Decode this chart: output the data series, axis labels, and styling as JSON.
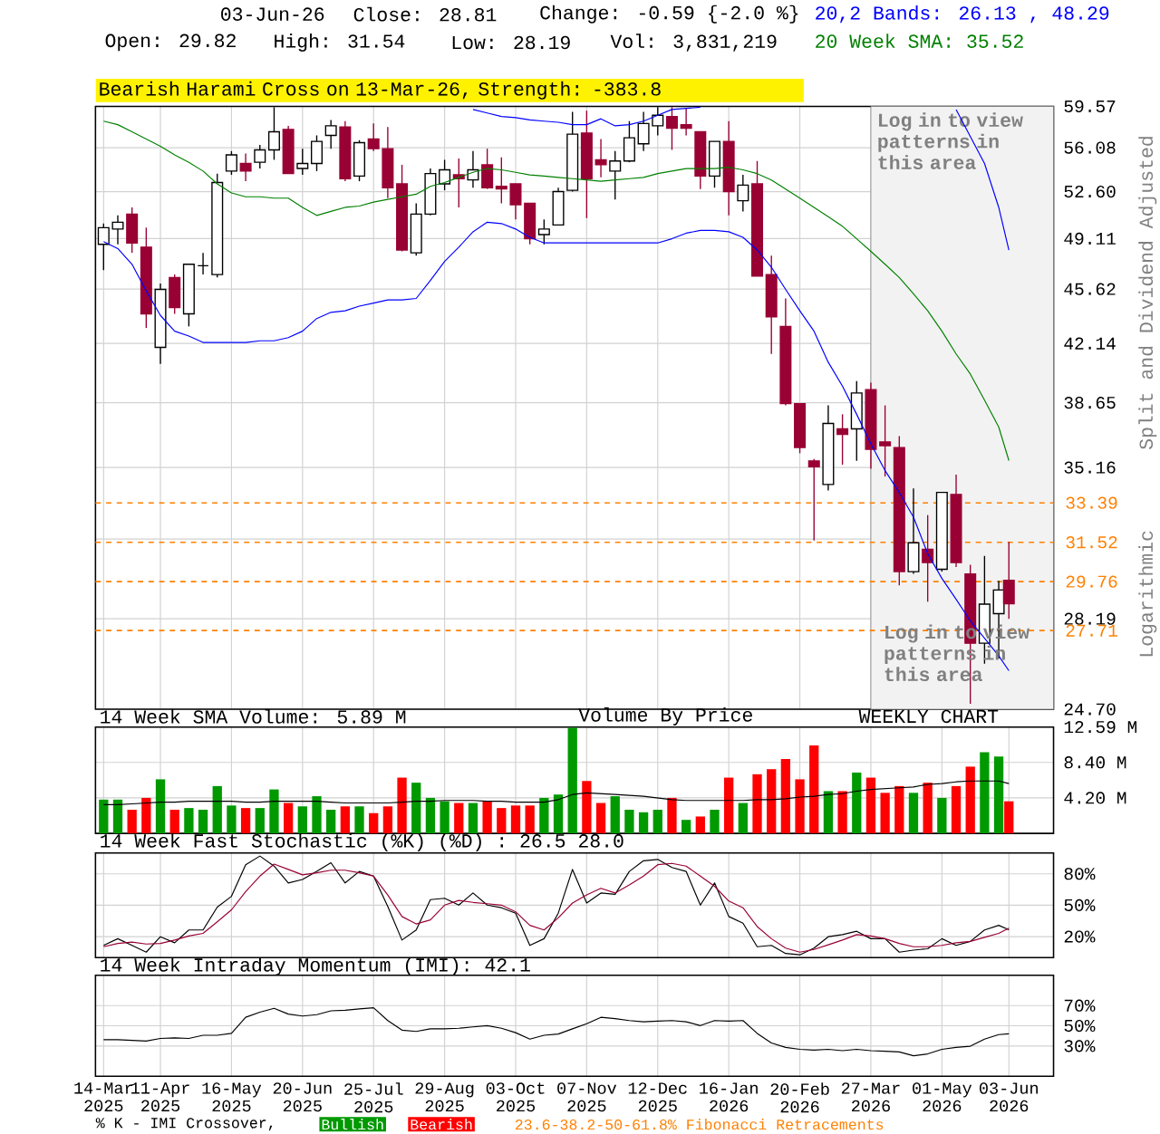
{
  "chart_data": [
    {
      "type": "candlestick",
      "grid": true,
      "log": true,
      "tick_labels": "y",
      "colors": [
        "#ffffff",
        "#ffffff",
        "#990033",
        "#990033",
        "#ffffff",
        "#990033",
        "#ffffff",
        "#000000",
        "#ffffff",
        "#ffffff",
        "#990033",
        "#ffffff",
        "#ffffff",
        "#990033",
        "#ffffff",
        "#ffffff",
        "#ffffff",
        "#990033",
        "#ffffff",
        "#990033",
        "#990033",
        "#990033",
        "#ffffff",
        "#ffffff",
        "#ffffff",
        "#990033",
        "#ffffff",
        "#990033",
        "#990033",
        "#990033",
        "#990033",
        "#ffffff",
        "#ffffff",
        "#ffffff",
        "#990033",
        "#990033",
        "#ffffff",
        "#ffffff",
        "#ffffff",
        "#ffffff",
        "#990033",
        "#990033",
        "#990033",
        "#ffffff",
        "#990033",
        "#ffffff",
        "#990033",
        "#990033",
        "#990033",
        "#990033",
        "#990033",
        "#ffffff",
        "#990033",
        "#ffffff",
        "#990033",
        "#990033",
        "#990033",
        "#ffffff",
        "#990033",
        "#ffffff",
        "#990033",
        "#990033",
        "#ffffff",
        "#ffffff",
        "#990033"
      ],
      "x": [
        "2025-03-14",
        "2025-03-21",
        "2025-03-28",
        "2025-04-04",
        "2025-04-11",
        "2025-04-18",
        "2025-04-25",
        "2025-05-02",
        "2025-05-09",
        "2025-05-16",
        "2025-05-23",
        "2025-05-30",
        "2025-06-06",
        "2025-06-13",
        "2025-06-20",
        "2025-06-27",
        "2025-07-04",
        "2025-07-11",
        "2025-07-18",
        "2025-07-25",
        "2025-08-01",
        "2025-08-08",
        "2025-08-15",
        "2025-08-22",
        "2025-08-29",
        "2025-09-05",
        "2025-09-12",
        "2025-09-19",
        "2025-09-26",
        "2025-10-03",
        "2025-10-10",
        "2025-10-17",
        "2025-10-24",
        "2025-10-31",
        "2025-11-07",
        "2025-11-14",
        "2025-11-21",
        "2025-11-28",
        "2025-12-05",
        "2025-12-12",
        "2025-12-19",
        "2025-12-26",
        "2026-01-02",
        "2026-01-09",
        "2026-01-16",
        "2026-01-23",
        "2026-01-30",
        "2026-02-06",
        "2026-02-13",
        "2026-02-20",
        "2026-02-27",
        "2026-03-06",
        "2026-03-13",
        "2026-03-20",
        "2026-03-27",
        "2026-04-03",
        "2026-04-10",
        "2026-04-17",
        "2026-04-24",
        "2026-05-01",
        "2026-05-08",
        "2026-05-15",
        "2026-05-22",
        "2026-05-29",
        "2026-06-03"
      ],
      "ohlc": [
        [
          48.7,
          50.2,
          46.9,
          49.9
        ],
        [
          49.8,
          50.8,
          48.7,
          50.3
        ],
        [
          50.9,
          51.4,
          48.1,
          48.8
        ],
        [
          48.5,
          49.9,
          43.1,
          44.0
        ],
        [
          41.9,
          46.0,
          40.9,
          45.6
        ],
        [
          46.4,
          46.6,
          44.0,
          44.4
        ],
        [
          44.0,
          47.3,
          43.2,
          47.3
        ],
        [
          47.2,
          48.1,
          46.6,
          47.2
        ],
        [
          46.6,
          54.0,
          46.4,
          53.3
        ],
        [
          54.2,
          55.8,
          53.9,
          55.5
        ],
        [
          54.8,
          55.6,
          53.4,
          54.2
        ],
        [
          54.9,
          56.3,
          54.4,
          55.9
        ],
        [
          55.9,
          59.5,
          55.1,
          57.4
        ],
        [
          57.6,
          57.9,
          54.0,
          54.0
        ],
        [
          54.4,
          56.0,
          53.9,
          54.8
        ],
        [
          54.8,
          57.1,
          54.2,
          56.6
        ],
        [
          57.1,
          58.4,
          56.0,
          57.9
        ],
        [
          57.8,
          58.3,
          53.4,
          53.6
        ],
        [
          53.8,
          56.7,
          53.4,
          56.5
        ],
        [
          56.8,
          58.1,
          55.8,
          56.0
        ],
        [
          56.0,
          57.8,
          52.1,
          52.9
        ],
        [
          53.2,
          54.7,
          48.2,
          48.3
        ],
        [
          48.1,
          51.7,
          47.9,
          50.9
        ],
        [
          50.9,
          54.4,
          50.8,
          54.0
        ],
        [
          53.2,
          55.1,
          52.7,
          54.3
        ],
        [
          53.9,
          55.2,
          51.4,
          53.6
        ],
        [
          53.5,
          55.8,
          52.9,
          54.3
        ],
        [
          54.7,
          56.0,
          52.8,
          52.9
        ],
        [
          53.0,
          55.3,
          51.7,
          52.8
        ],
        [
          53.2,
          53.2,
          50.5,
          51.6
        ],
        [
          51.7,
          51.7,
          48.7,
          49.1
        ],
        [
          49.4,
          50.5,
          48.7,
          49.8
        ],
        [
          50.1,
          52.9,
          50.1,
          52.6
        ],
        [
          52.7,
          59.1,
          52.6,
          57.2
        ],
        [
          57.3,
          59.2,
          50.6,
          53.6
        ],
        [
          55.1,
          56.8,
          53.7,
          54.7
        ],
        [
          54.2,
          55.8,
          52.0,
          55.0
        ],
        [
          55.0,
          58.3,
          54.9,
          56.9
        ],
        [
          56.4,
          59.1,
          55.8,
          58.1
        ],
        [
          57.9,
          59.5,
          57.1,
          58.8
        ],
        [
          58.7,
          59.5,
          55.9,
          57.7
        ],
        [
          58.0,
          59.4,
          57.1,
          57.7
        ],
        [
          57.4,
          57.4,
          52.8,
          53.8
        ],
        [
          53.8,
          56.6,
          52.9,
          56.6
        ],
        [
          56.6,
          58.3,
          50.8,
          52.6
        ],
        [
          51.9,
          53.9,
          51.1,
          53.1
        ],
        [
          53.2,
          55.0,
          46.5,
          46.5
        ],
        [
          46.6,
          47.9,
          41.5,
          43.8
        ],
        [
          43.2,
          45.0,
          38.5,
          38.6
        ],
        [
          38.6,
          38.6,
          35.9,
          36.2
        ],
        [
          35.5,
          35.6,
          31.6,
          35.2
        ],
        [
          34.3,
          38.5,
          34.0,
          37.5
        ],
        [
          37.2,
          38.0,
          35.3,
          36.9
        ],
        [
          37.2,
          39.9,
          35.5,
          39.2
        ],
        [
          39.4,
          39.8,
          35.1,
          36.1
        ],
        [
          36.5,
          38.5,
          34.7,
          36.3
        ],
        [
          36.2,
          36.8,
          29.6,
          30.2
        ],
        [
          30.2,
          34.1,
          30.1,
          31.5
        ],
        [
          31.2,
          32.8,
          28.9,
          30.6
        ],
        [
          30.3,
          33.9,
          30.2,
          33.9
        ],
        [
          33.8,
          34.8,
          30.4,
          30.6
        ],
        [
          30.1,
          30.5,
          24.9,
          27.2
        ],
        [
          27.2,
          30.9,
          26.4,
          28.8
        ],
        [
          28.4,
          29.8,
          26.6,
          29.4
        ],
        [
          29.82,
          31.54,
          28.19,
          28.81
        ]
      ],
      "series": [
        {
          "type": "line",
          "name": "20,2 Bands: 26.13 , 48.29",
          "color": "#0000ff",
          "values": [
            null,
            null,
            null,
            null,
            null,
            null,
            null,
            null,
            null,
            null,
            null,
            null,
            null,
            null,
            null,
            null,
            null,
            null,
            null,
            null,
            null,
            null,
            null,
            null,
            null,
            null,
            59.3,
            59.0,
            58.7,
            58.6,
            58.4,
            58.3,
            58.2,
            58.0,
            58.0,
            58.5,
            57.9,
            58.0,
            58.3,
            58.8,
            59.3,
            59.4,
            59.5,
            null,
            null,
            null,
            null,
            null,
            null,
            null,
            null,
            null,
            null,
            null,
            null,
            null,
            null,
            null,
            null,
            null,
            59.3,
            57.0,
            54.8,
            51.4,
            48.29
          ]
        },
        {
          "type": "line",
          "color": "#0000ff",
          "values": [
            48.9,
            48.4,
            47.3,
            45.5,
            43.9,
            42.9,
            42.6,
            42.2,
            42.2,
            42.2,
            42.2,
            42.3,
            42.3,
            42.5,
            42.9,
            43.7,
            44.1,
            44.2,
            44.5,
            44.7,
            44.9,
            44.9,
            45.0,
            46.2,
            47.5,
            48.5,
            49.6,
            50.3,
            50.2,
            49.8,
            49.2,
            48.8,
            48.8,
            48.8,
            48.8,
            48.8,
            48.8,
            48.8,
            48.8,
            48.8,
            49.1,
            49.5,
            49.7,
            49.7,
            49.6,
            49.2,
            48.3,
            47.1,
            45.6,
            44.2,
            42.9,
            41.0,
            39.6,
            38.0,
            36.4,
            35.0,
            33.9,
            32.7,
            31.0,
            29.9,
            29.0,
            28.1,
            27.4,
            26.7,
            26.13
          ]
        },
        {
          "type": "line",
          "name": "20 Week SMA: 35.52",
          "color": "#008000",
          "values": [
            58.3,
            58.0,
            57.4,
            56.8,
            56.2,
            55.5,
            54.9,
            54.2,
            53.2,
            52.5,
            52.2,
            52.2,
            52.1,
            52.1,
            51.4,
            50.8,
            51.1,
            51.4,
            51.5,
            51.8,
            52.0,
            52.2,
            52.4,
            53.0,
            53.3,
            53.7,
            54.1,
            54.4,
            54.3,
            54.1,
            53.9,
            53.8,
            53.7,
            53.6,
            53.5,
            53.4,
            53.5,
            53.6,
            53.7,
            54.0,
            54.2,
            54.4,
            54.4,
            54.4,
            54.5,
            54.3,
            54.0,
            53.5,
            52.8,
            52.1,
            51.4,
            50.7,
            50.0,
            49.1,
            48.2,
            47.3,
            46.4,
            45.3,
            44.2,
            42.9,
            41.5,
            40.3,
            38.8,
            37.3,
            35.52
          ]
        }
      ],
      "xlim": [
        "2025-03-10",
        "2026-06-25"
      ],
      "xticks": [
        {
          "value": "2025-03-14",
          "label": null
        },
        {
          "value": "2025-04-11",
          "label": null
        },
        {
          "value": "2025-05-16",
          "label": null
        },
        {
          "value": "2025-06-20",
          "label": null
        },
        {
          "value": "2025-07-25",
          "label": null
        },
        {
          "value": "2025-08-29",
          "label": null
        },
        {
          "value": "2025-10-03",
          "label": null
        },
        {
          "value": "2025-11-07",
          "label": null
        },
        {
          "value": "2025-12-12",
          "label": null
        },
        {
          "value": "2026-01-16",
          "label": null
        },
        {
          "value": "2026-02-20",
          "label": null
        },
        {
          "value": "2026-03-27",
          "label": null
        },
        {
          "value": "2026-05-01",
          "label": null
        },
        {
          "value": "2026-06-03",
          "label": null
        }
      ],
      "ylim": [
        24.7,
        59.57
      ],
      "yticks": [
        59.57,
        56.08,
        {
          "value": 52.6,
          "label": "52.60"
        },
        49.11,
        45.62,
        42.14,
        38.65,
        35.16,
        {
          "value": 31.67,
          "label": null
        },
        28.19,
        {
          "value": 24.7,
          "label": "24.70"
        }
      ],
      "ref_lines": [
        {
          "axis": "y",
          "value": 33.39,
          "label": "33.39",
          "color": "#ff8000",
          "line_style": "dashed"
        },
        {
          "axis": "y",
          "value": 31.52,
          "label": "31.52",
          "color": "#ff8000",
          "line_style": "dashed"
        },
        {
          "axis": "y",
          "value": 29.76,
          "label": "29.76",
          "color": "#ff8000",
          "line_style": "dashed"
        },
        {
          "axis": "y",
          "value": 27.71,
          "label": "27.71",
          "color": "#ff8000",
          "line_style": "dashed"
        }
      ],
      "bands": [
        {
          "axis": "x",
          "from": "2026-03-27",
          "to": "2026-06-25",
          "label": "Log in to view patterns in this area",
          "color": "#f2f2f2"
        }
      ],
      "annotations": [
        "03-Jun-26",
        "Close: 28.81",
        "Change: -0.59 {-2.0 %}",
        "Open: 29.82",
        "High: 31.54",
        "Low: 28.19",
        "Vol: 3,831,219",
        "Bearish Harami Cross on 13-Mar-26, Strength: -383.8",
        "Split and Dividend Adjusted",
        "Logarithmic",
        "Log in to view patterns in this area"
      ]
    },
    {
      "type": "bar",
      "grid": true,
      "tick_labels": "y",
      "x": [
        "2025-03-14",
        "2025-03-21",
        "2025-03-28",
        "2025-04-04",
        "2025-04-11",
        "2025-04-18",
        "2025-04-25",
        "2025-05-02",
        "2025-05-09",
        "2025-05-16",
        "2025-05-23",
        "2025-05-30",
        "2025-06-06",
        "2025-06-13",
        "2025-06-20",
        "2025-06-27",
        "2025-07-04",
        "2025-07-11",
        "2025-07-18",
        "2025-07-25",
        "2025-08-01",
        "2025-08-08",
        "2025-08-15",
        "2025-08-22",
        "2025-08-29",
        "2025-09-05",
        "2025-09-12",
        "2025-09-19",
        "2025-09-26",
        "2025-10-03",
        "2025-10-10",
        "2025-10-17",
        "2025-10-24",
        "2025-10-31",
        "2025-11-07",
        "2025-11-14",
        "2025-11-21",
        "2025-11-28",
        "2025-12-05",
        "2025-12-12",
        "2025-12-19",
        "2025-12-26",
        "2026-01-02",
        "2026-01-09",
        "2026-01-16",
        "2026-01-23",
        "2026-01-30",
        "2026-02-06",
        "2026-02-13",
        "2026-02-20",
        "2026-02-27",
        "2026-03-06",
        "2026-03-13",
        "2026-03-20",
        "2026-03-27",
        "2026-04-03",
        "2026-04-10",
        "2026-04-17",
        "2026-04-24",
        "2026-05-01",
        "2026-05-08",
        "2026-05-15",
        "2026-05-22",
        "2026-05-29",
        "2026-06-03"
      ],
      "series": [
        {
          "colors": [
            "#009900",
            "#009900",
            "#ff0000",
            "#ff0000",
            "#009900",
            "#ff0000",
            "#009900",
            "#009900",
            "#009900",
            "#009900",
            "#ff0000",
            "#009900",
            "#009900",
            "#ff0000",
            "#009900",
            "#009900",
            "#009900",
            "#ff0000",
            "#009900",
            "#ff0000",
            "#ff0000",
            "#ff0000",
            "#009900",
            "#009900",
            "#009900",
            "#ff0000",
            "#009900",
            "#ff0000",
            "#ff0000",
            "#ff0000",
            "#ff0000",
            "#009900",
            "#009900",
            "#009900",
            "#ff0000",
            "#ff0000",
            "#009900",
            "#009900",
            "#009900",
            "#009900",
            "#ff0000",
            "#009900",
            "#ff0000",
            "#009900",
            "#ff0000",
            "#009900",
            "#ff0000",
            "#ff0000",
            "#ff0000",
            "#ff0000",
            "#ff0000",
            "#009900",
            "#ff0000",
            "#009900",
            "#ff0000",
            "#ff0000",
            "#ff0000",
            "#009900",
            "#ff0000",
            "#009900",
            "#ff0000",
            "#ff0000",
            "#009900",
            "#009900",
            "#ff0000"
          ],
          "values": [
            4.0,
            4.0,
            2.8,
            4.2,
            6.4,
            2.8,
            3.0,
            2.8,
            5.6,
            3.3,
            3.0,
            3.0,
            5.2,
            3.6,
            3.2,
            4.4,
            2.8,
            3.2,
            3.2,
            2.4,
            3.2,
            6.6,
            6.0,
            4.2,
            3.8,
            3.6,
            3.6,
            3.8,
            3.0,
            3.3,
            3.3,
            4.2,
            4.6,
            12.5,
            6.2,
            3.6,
            4.4,
            2.8,
            2.5,
            2.8,
            4.2,
            1.6,
            2.0,
            2.8,
            6.6,
            3.6,
            7.0,
            7.6,
            8.8,
            6.4,
            10.4,
            5.0,
            5.0,
            7.2,
            6.6,
            4.8,
            5.6,
            4.8,
            6.0,
            4.2,
            5.6,
            7.9,
            9.6,
            9.1,
            3.8
          ]
        },
        {
          "type": "line",
          "name": "14 Week SMA Volume: 5.89 M",
          "color": "#000000",
          "values": [
            3.4,
            3.4,
            3.5,
            3.6,
            3.7,
            3.7,
            3.8,
            3.8,
            3.8,
            3.8,
            3.7,
            3.7,
            3.8,
            3.8,
            3.8,
            3.8,
            3.7,
            3.6,
            3.6,
            3.6,
            3.6,
            3.7,
            3.8,
            3.8,
            3.9,
            3.9,
            3.9,
            3.8,
            3.8,
            3.7,
            3.7,
            3.7,
            4.0,
            4.6,
            4.8,
            4.7,
            4.6,
            4.5,
            4.4,
            4.2,
            4.0,
            3.9,
            3.9,
            3.9,
            3.9,
            3.9,
            4.0,
            4.0,
            4.1,
            4.3,
            4.4,
            4.6,
            4.7,
            5.0,
            5.2,
            5.3,
            5.4,
            5.5,
            5.8,
            5.9,
            6.1,
            6.2,
            6.2,
            6.2,
            5.89
          ]
        }
      ],
      "xlim": [
        "2025-03-10",
        "2026-06-25"
      ],
      "xticks": [
        {
          "value": "2025-03-14",
          "label": null
        },
        {
          "value": "2025-04-11",
          "label": null
        },
        {
          "value": "2025-05-16",
          "label": null
        },
        {
          "value": "2025-06-20",
          "label": null
        },
        {
          "value": "2025-07-25",
          "label": null
        },
        {
          "value": "2025-08-29",
          "label": null
        },
        {
          "value": "2025-10-03",
          "label": null
        },
        {
          "value": "2025-11-07",
          "label": null
        },
        {
          "value": "2025-12-12",
          "label": null
        },
        {
          "value": "2026-01-16",
          "label": null
        },
        {
          "value": "2026-02-20",
          "label": null
        },
        {
          "value": "2026-03-27",
          "label": null
        },
        {
          "value": "2026-05-01",
          "label": null
        },
        {
          "value": "2026-06-03",
          "label": null
        }
      ],
      "ylim": [
        0,
        12.59
      ],
      "yticks": [
        {
          "value": 4.2,
          "label": "4.20 M"
        },
        {
          "value": 8.4,
          "label": "8.40 M"
        },
        {
          "value": 12.59,
          "label": "12.59 M"
        }
      ],
      "annotations": [
        "Volume By Price",
        "WEEKLY CHART"
      ]
    },
    {
      "type": "line",
      "grid": true,
      "tick_labels": "y",
      "title": "14 Week Fast Stochastic (%K) (%D) : 26.5 28.0",
      "x": [
        "2025-03-14",
        "2025-03-21",
        "2025-03-28",
        "2025-04-04",
        "2025-04-11",
        "2025-04-18",
        "2025-04-25",
        "2025-05-02",
        "2025-05-09",
        "2025-05-16",
        "2025-05-23",
        "2025-05-30",
        "2025-06-06",
        "2025-06-13",
        "2025-06-20",
        "2025-06-27",
        "2025-07-04",
        "2025-07-11",
        "2025-07-18",
        "2025-07-25",
        "2025-08-01",
        "2025-08-08",
        "2025-08-15",
        "2025-08-22",
        "2025-08-29",
        "2025-09-05",
        "2025-09-12",
        "2025-09-19",
        "2025-09-26",
        "2025-10-03",
        "2025-10-10",
        "2025-10-17",
        "2025-10-24",
        "2025-10-31",
        "2025-11-07",
        "2025-11-14",
        "2025-11-21",
        "2025-11-28",
        "2025-12-05",
        "2025-12-12",
        "2025-12-19",
        "2025-12-26",
        "2026-01-02",
        "2026-01-09",
        "2026-01-16",
        "2026-01-23",
        "2026-01-30",
        "2026-02-06",
        "2026-02-13",
        "2026-02-20",
        "2026-02-27",
        "2026-03-06",
        "2026-03-13",
        "2026-03-20",
        "2026-03-27",
        "2026-04-03",
        "2026-04-10",
        "2026-04-17",
        "2026-04-24",
        "2026-05-01",
        "2026-05-08",
        "2026-05-15",
        "2026-05-22",
        "2026-05-29",
        "2026-06-03"
      ],
      "series": [
        {
          "color": "#000000",
          "values": [
            11.6,
            18.0,
            11.6,
            5.1,
            19.9,
            14.1,
            26.3,
            26.3,
            48.2,
            58.5,
            88.7,
            97.0,
            87.4,
            71.3,
            74.6,
            82.3,
            90.6,
            71.3,
            82.3,
            77.8,
            48.8,
            16.7,
            26.3,
            55.3,
            56.6,
            50.1,
            61.7,
            50.1,
            47.6,
            42.4,
            11.6,
            18.0,
            42.4,
            84.2,
            52.1,
            61.7,
            60.4,
            82.3,
            92.5,
            93.8,
            86.1,
            82.3,
            50.1,
            71.3,
            39.2,
            32.8,
            10.3,
            11.6,
            3.9,
            2.6,
            9.0,
            19.9,
            21.9,
            25.1,
            18.0,
            18.0,
            5.1,
            7.1,
            8.4,
            18.0,
            11.6,
            15.4,
            26.3,
            30.8,
            26.5
          ]
        },
        {
          "color": "#990033",
          "values": [
            10.3,
            13.5,
            14.8,
            12.9,
            13.5,
            16.7,
            20.6,
            23.1,
            34.1,
            45.6,
            63.0,
            77.8,
            89.3,
            84.2,
            79.0,
            81.0,
            83.5,
            83.5,
            81.0,
            77.8,
            59.8,
            39.2,
            32.1,
            36.0,
            50.1,
            54.6,
            52.7,
            51.4,
            50.1,
            43.7,
            30.8,
            26.3,
            37.9,
            52.1,
            59.8,
            66.2,
            61.7,
            69.4,
            77.8,
            88.7,
            90.0,
            87.4,
            77.8,
            68.1,
            54.0,
            47.6,
            29.6,
            18.0,
            9.0,
            5.1,
            7.7,
            12.2,
            16.7,
            21.9,
            20.6,
            18.0,
            13.5,
            10.3,
            10.3,
            11.6,
            14.1,
            15.4,
            19.3,
            23.1,
            28.0
          ]
        }
      ],
      "xlim": [
        "2025-03-10",
        "2026-06-25"
      ],
      "xticks": [
        {
          "value": "2025-03-14",
          "label": null
        },
        {
          "value": "2025-04-11",
          "label": null
        },
        {
          "value": "2025-05-16",
          "label": null
        },
        {
          "value": "2025-06-20",
          "label": null
        },
        {
          "value": "2025-07-25",
          "label": null
        },
        {
          "value": "2025-08-29",
          "label": null
        },
        {
          "value": "2025-10-03",
          "label": null
        },
        {
          "value": "2025-11-07",
          "label": null
        },
        {
          "value": "2025-12-12",
          "label": null
        },
        {
          "value": "2026-01-16",
          "label": null
        },
        {
          "value": "2026-02-20",
          "label": null
        },
        {
          "value": "2026-03-27",
          "label": null
        },
        {
          "value": "2026-05-01",
          "label": null
        },
        {
          "value": "2026-06-03",
          "label": null
        }
      ],
      "ylim": [
        0,
        100
      ],
      "yticks": [
        {
          "value": 20,
          "label": "20%"
        },
        {
          "value": 50,
          "label": "50%"
        },
        {
          "value": 80,
          "label": "80%"
        }
      ]
    },
    {
      "type": "line",
      "grid": true,
      "title": "14 Week Intraday Momentum (IMI): 42.1",
      "x": [
        "2025-03-14",
        "2025-03-21",
        "2025-03-28",
        "2025-04-04",
        "2025-04-11",
        "2025-04-18",
        "2025-04-25",
        "2025-05-02",
        "2025-05-09",
        "2025-05-16",
        "2025-05-23",
        "2025-05-30",
        "2025-06-06",
        "2025-06-13",
        "2025-06-20",
        "2025-06-27",
        "2025-07-04",
        "2025-07-11",
        "2025-07-18",
        "2025-07-25",
        "2025-08-01",
        "2025-08-08",
        "2025-08-15",
        "2025-08-22",
        "2025-08-29",
        "2025-09-05",
        "2025-09-12",
        "2025-09-19",
        "2025-09-26",
        "2025-10-03",
        "2025-10-10",
        "2025-10-17",
        "2025-10-24",
        "2025-10-31",
        "2025-11-07",
        "2025-11-14",
        "2025-11-21",
        "2025-11-28",
        "2025-12-05",
        "2025-12-12",
        "2025-12-19",
        "2025-12-26",
        "2026-01-02",
        "2026-01-09",
        "2026-01-16",
        "2026-01-23",
        "2026-01-30",
        "2026-02-06",
        "2026-02-13",
        "2026-02-20",
        "2026-02-27",
        "2026-03-06",
        "2026-03-13",
        "2026-03-20",
        "2026-03-27",
        "2026-04-03",
        "2026-04-10",
        "2026-04-17",
        "2026-04-24",
        "2026-05-01",
        "2026-05-08",
        "2026-05-15",
        "2026-05-22",
        "2026-05-29",
        "2026-06-03"
      ],
      "series": [
        {
          "color": "#000000",
          "values": [
            36.2,
            36.2,
            35.6,
            34.9,
            37.5,
            38.1,
            37.5,
            40.6,
            40.6,
            42.5,
            58.4,
            63.5,
            67.3,
            61.6,
            59.7,
            61.0,
            64.8,
            65.4,
            66.7,
            67.9,
            55.2,
            45.7,
            44.4,
            47.0,
            47.0,
            47.6,
            48.9,
            50.2,
            47.6,
            43.2,
            36.8,
            40.6,
            41.9,
            47.0,
            52.1,
            58.4,
            57.1,
            55.2,
            54.0,
            54.6,
            55.2,
            54.0,
            50.2,
            55.2,
            54.6,
            55.2,
            42.5,
            33.0,
            28.6,
            26.7,
            26.0,
            26.7,
            25.4,
            26.7,
            25.4,
            24.8,
            24.1,
            20.3,
            22.2,
            26.7,
            28.6,
            29.8,
            36.8,
            41.3,
            42.1
          ]
        }
      ],
      "xlim": [
        "2025-03-10",
        "2026-06-25"
      ],
      "xticks": [
        {
          "value": "2025-03-14",
          "label": "14-Mar 2025"
        },
        {
          "value": "2025-04-11",
          "label": "11-Apr 2025"
        },
        {
          "value": "2025-05-16",
          "label": "16-May 2025"
        },
        {
          "value": "2025-06-20",
          "label": "20-Jun 2025"
        },
        {
          "value": "2025-07-25",
          "label": "25-Jul 2025"
        },
        {
          "value": "2025-08-29",
          "label": "29-Aug 2025"
        },
        {
          "value": "2025-10-03",
          "label": "03-Oct 2025"
        },
        {
          "value": "2025-11-07",
          "label": "07-Nov 2025"
        },
        {
          "value": "2025-12-12",
          "label": "12-Dec 2025"
        },
        {
          "value": "2026-01-16",
          "label": "16-Jan 2026"
        },
        {
          "value": "2026-02-20",
          "label": "20-Feb 2026"
        },
        {
          "value": "2026-03-27",
          "label": "27-Mar 2026"
        },
        {
          "value": "2026-05-01",
          "label": "01-May 2026"
        },
        {
          "value": "2026-06-03",
          "label": "03-Jun 2026"
        }
      ],
      "ylim": [
        0,
        100
      ],
      "yticks": [
        {
          "value": 30,
          "label": "30%"
        },
        {
          "value": 50,
          "label": "50%"
        },
        {
          "value": 70,
          "label": "70%"
        }
      ],
      "annotations": [
        "% K - IMI Crossover,",
        "Bullish",
        "Bearish",
        "23.6-38.2-50-61.8% Fibonacci Retracements"
      ]
    }
  ]
}
